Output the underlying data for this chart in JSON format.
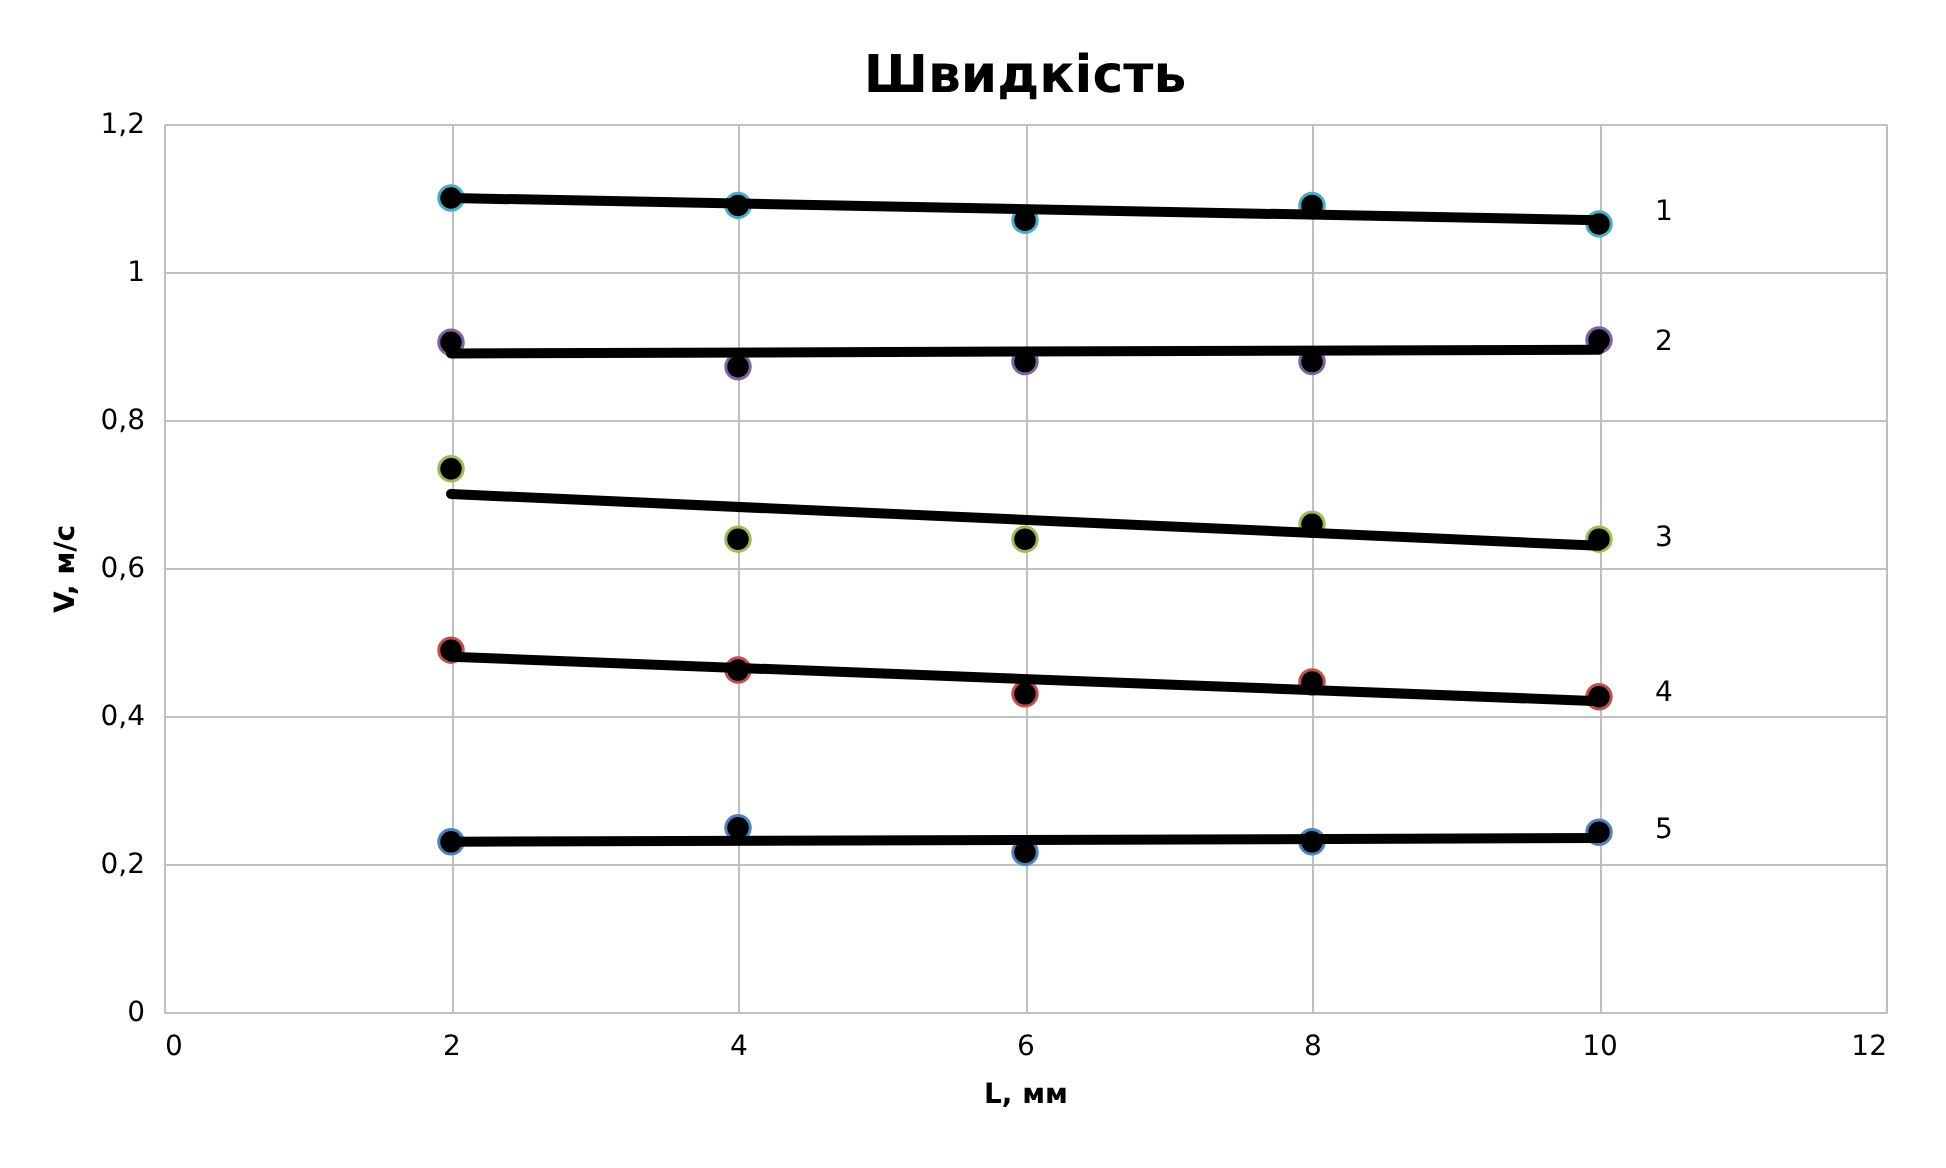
{
  "chart_data": {
    "type": "scatter",
    "title": "Швидкість",
    "xlabel": "L, мм",
    "ylabel": "V, м/с",
    "xlim": [
      0,
      12
    ],
    "xticks": [
      0,
      2,
      4,
      6,
      8,
      10,
      12
    ],
    "ylim": [
      0,
      1.2
    ],
    "yticks": [
      0,
      {
        "value": 0.2,
        "label": "0,2"
      },
      {
        "value": 0.4,
        "label": "0,4"
      },
      {
        "value": 0.6,
        "label": "0,6"
      },
      {
        "value": 0.8,
        "label": "0,8"
      },
      1,
      {
        "value": 1.2,
        "label": "1,2"
      }
    ],
    "grid": true,
    "series": [
      {
        "marker": "circle",
        "color": "#4bacc6",
        "x": [
          2,
          4,
          6,
          8,
          10
        ],
        "values": [
          1.1,
          1.09,
          1.07,
          1.09,
          1.065
        ]
      },
      {
        "marker": "circle",
        "color": "#8064a2",
        "x": [
          2,
          4,
          6,
          8,
          10
        ],
        "values": [
          0.905,
          0.872,
          0.879,
          0.879,
          0.908
        ]
      },
      {
        "marker": "circle",
        "color": "#9bbb59",
        "x": [
          2,
          4,
          6,
          8,
          10
        ],
        "values": [
          0.734,
          0.639,
          0.639,
          0.659,
          0.639
        ]
      },
      {
        "marker": "circle",
        "color": "#c0504d",
        "x": [
          2,
          4,
          6,
          8,
          10
        ],
        "values": [
          0.489,
          0.462,
          0.43,
          0.446,
          0.426
        ]
      },
      {
        "marker": "circle",
        "color": "#4f81bd",
        "x": [
          2,
          4,
          6,
          8,
          10
        ],
        "values": [
          0.23,
          0.249,
          0.216,
          0.23,
          0.243
        ]
      },
      {
        "type": "line",
        "color": "#000000",
        "x": [
          2,
          10
        ],
        "values": [
          1.1,
          1.07
        ]
      },
      {
        "type": "line",
        "color": "#000000",
        "x": [
          2,
          10
        ],
        "values": [
          0.89,
          0.895
        ]
      },
      {
        "type": "line",
        "color": "#000000",
        "x": [
          2,
          10
        ],
        "values": [
          0.7,
          0.63
        ]
      },
      {
        "type": "line",
        "color": "#000000",
        "x": [
          2,
          10
        ],
        "values": [
          0.48,
          0.42
        ]
      },
      {
        "type": "line",
        "color": "#000000",
        "x": [
          2,
          10
        ],
        "values": [
          0.23,
          0.235
        ]
      }
    ],
    "annotations": [
      "1",
      "2",
      "3",
      "4",
      "5"
    ]
  }
}
